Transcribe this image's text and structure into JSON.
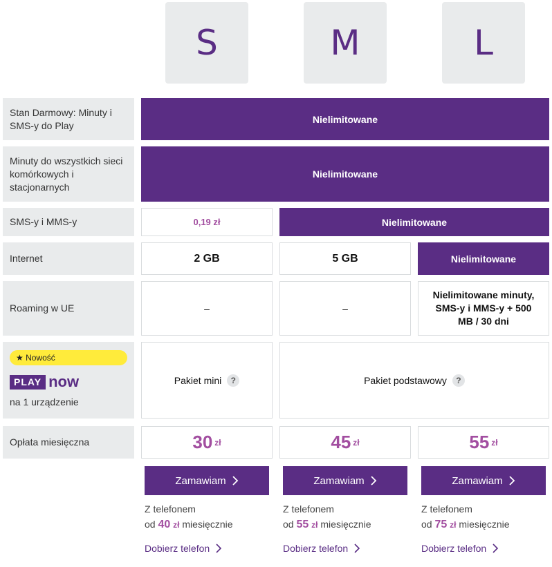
{
  "plans": [
    {
      "letter": "S"
    },
    {
      "letter": "M"
    },
    {
      "letter": "L"
    }
  ],
  "rows": {
    "free_state": {
      "label": "Stan Darmowy: Minuty i SMS-y do Play",
      "value": "Nielimitowane"
    },
    "minutes": {
      "label": "Minuty do wszystkich sieci komórkowych i stacjonarnych",
      "value": "Nielimitowane"
    },
    "sms": {
      "label": "SMS-y i MMS-y",
      "s_value": "0,19 zł",
      "ml_value": "Nielimitowane"
    },
    "internet": {
      "label": "Internet",
      "s_value": "2 GB",
      "m_value": "5 GB",
      "l_value": "Nielimitowane"
    },
    "roaming": {
      "label": "Roaming w UE",
      "s_value": "–",
      "m_value": "–",
      "l_value": "Nielimitowane minuty, SMS-y i MMS-y + 500 MB / 30 dni"
    },
    "playnow": {
      "badge": "★ Nowość",
      "logo_play": "PLAY",
      "logo_now": "now",
      "label": "na 1 urządzenie",
      "s_value": "Pakiet mini",
      "ml_value": "Pakiet podstawowy",
      "help": "?"
    },
    "fee": {
      "label": "Opłata miesięczna",
      "s_value": "30",
      "m_value": "45",
      "l_value": "55",
      "currency": "zł"
    }
  },
  "actions": {
    "order_label": "Zamawiam",
    "with_phone": "Z telefonem",
    "from": "od",
    "monthly": "miesięcznie",
    "currency": "zł",
    "pick_phone": "Dobierz telefon",
    "phone_prices": {
      "s": "40",
      "m": "55",
      "l": "75"
    }
  },
  "colors": {
    "brand_purple": "#5a2d84",
    "price_pink": "#a24ea0",
    "badge_yellow": "#ffeb3b",
    "label_bg": "#e9ebec"
  },
  "icons": {
    "chevron": "chevron-right-icon",
    "help": "question-icon",
    "star": "star-icon"
  }
}
